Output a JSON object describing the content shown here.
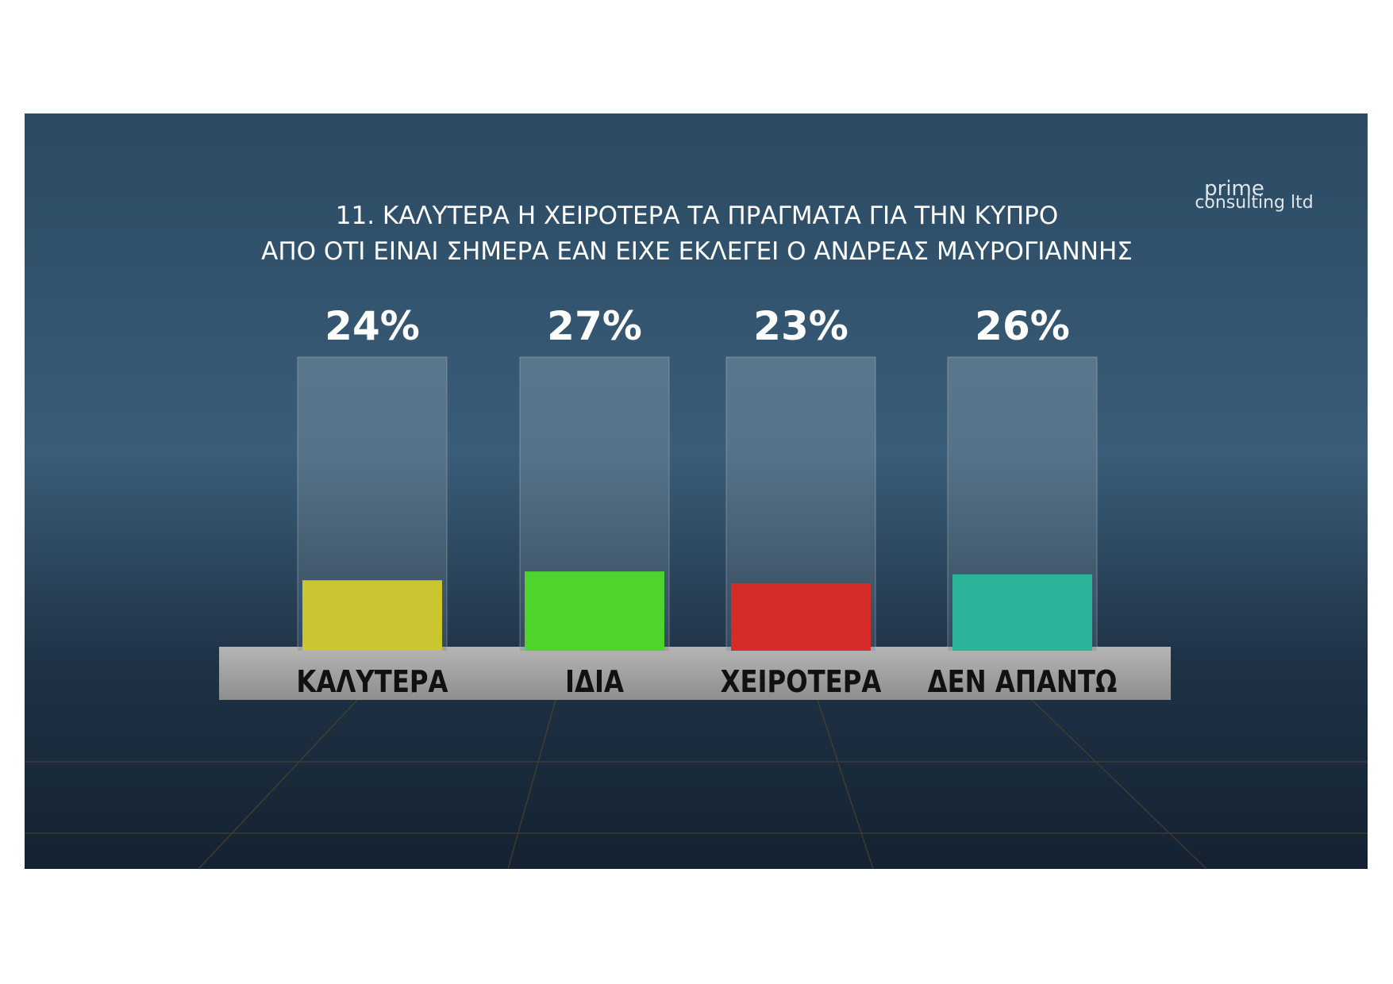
{
  "chart_data": {
    "type": "bar",
    "title_lines": [
      "11. ΚΑΛΥΤΕΡΑ Η ΧΕΙΡΟΤΕΡΑ ΤΑ ΠΡΑΓΜΑΤΑ ΓΙΑ ΤΗΝ ΚΥΠΡΟ",
      "ΑΠΟ ΟΤΙ ΕΙΝΑΙ ΣΗΜΕΡΑ ΕΑΝ ΕΙΧΕ ΕΚΛΕΓΕΙ Ο ΑΝΔΡΕΑΣ ΜΑΥΡΟΓΙΑΝΝΗΣ"
    ],
    "logo": [
      "prime",
      "consulting ltd"
    ],
    "categories": [
      "ΚΑΛΥΤΕΡΑ",
      "ΙΔΙΑ",
      "ΧΕΙΡΟΤΕΡΑ",
      "ΔΕΝ ΑΠΑΝΤΩ"
    ],
    "values": [
      24,
      27,
      23,
      26
    ],
    "value_labels": [
      "24%",
      "27%",
      "23%",
      "26%"
    ],
    "colors": [
      "#c9c631",
      "#4ed42d",
      "#d52b2b",
      "#2cb49a"
    ],
    "ylim": [
      0,
      100
    ]
  }
}
